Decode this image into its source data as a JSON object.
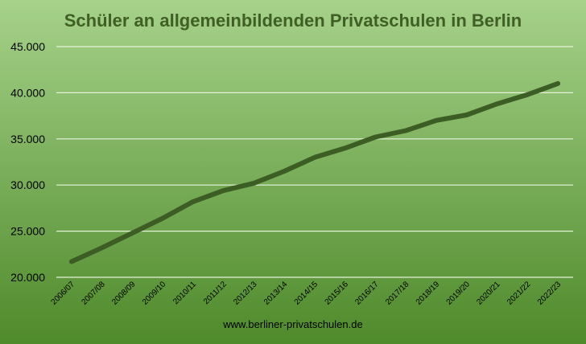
{
  "chart_data": {
    "type": "line",
    "title": "Schüler an allgemeinbildenden Privatschulen in Berlin",
    "source_label": "www.berliner-privatschulen.de",
    "categories": [
      "2006/07",
      "2007/08",
      "2008/09",
      "2009/10",
      "2010/11",
      "2011/12",
      "2012/13",
      "2013/14",
      "2014/15",
      "2015/16",
      "2016/17",
      "2017/18",
      "2018/19",
      "2019/20",
      "2020/21",
      "2021/22",
      "2022/23"
    ],
    "series": [
      {
        "values": [
          21700,
          23200,
          24800,
          26400,
          28200,
          29400,
          30200,
          31500,
          33000,
          34000,
          35200,
          35900,
          37000,
          37600,
          38800,
          39800,
          41000
        ]
      }
    ],
    "y_ticks": [
      "45.000",
      "40.000",
      "35.000",
      "30.000",
      "25.000",
      "20.000"
    ],
    "ylim": [
      20000,
      45000
    ],
    "grid": true,
    "colors": {
      "background_top": "#a6d28a",
      "background_bottom": "#4f8a2b",
      "line": "#3c5e25",
      "title": "#3f5f25",
      "gridline": "#e6f2dc",
      "axis_text": "#000000"
    }
  }
}
